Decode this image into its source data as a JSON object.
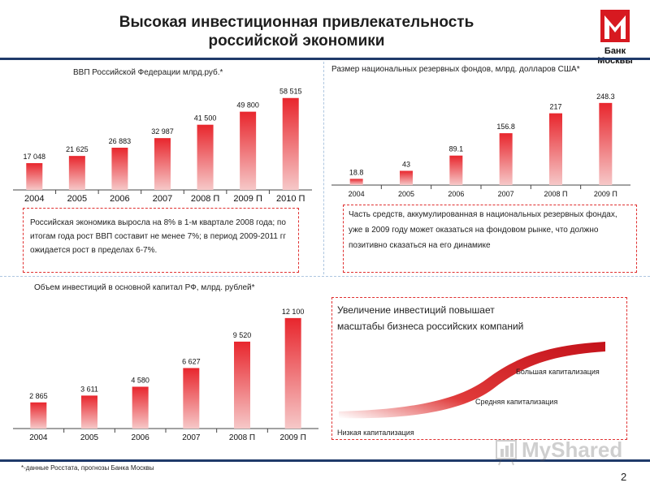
{
  "header": {
    "title_line1": "Высокая инвестиционная привлекательность",
    "title_line2": "российской экономики",
    "logo_text": "Банк Москвы"
  },
  "colors": {
    "bar": "#e8262d",
    "bar_light": "#f6c8c8",
    "header_rule": "#1f3a6a",
    "box_border": "#e03030"
  },
  "gdp": {
    "title": "ВВП Российской Федерации млрд.руб.*",
    "note": "Российская экономика выросла на 8% в 1-м квартале 2008 года; по итогам года рост ВВП составит не менее 7%; в период 2009-2011  гг ожидается рост в пределах 6-7%."
  },
  "reserves": {
    "title": "Размер национальных резервных фондов, млрд. долларов США*",
    "note": "Часть средств, аккумулированная в национальных резервных фондах, уже в 2009 году может оказаться на фондовом рынке, что должно позитивно сказаться на его динамике"
  },
  "investment": {
    "title": "Объем инвестиций  в основной капитал РФ, млрд.  рублей*"
  },
  "growth": {
    "title_line1": "Увеличение инвестиций повышает",
    "title_line2": "масштабы бизнеса российских компаний",
    "large": "Большая капитализация",
    "medium": "Средняя капитализация",
    "small": "Низкая капитализация"
  },
  "footer": {
    "footnote": "*-данные Росстата, прогнозы Банка Москвы",
    "page_number": "2",
    "watermark": "MyShared"
  },
  "chart_data": [
    {
      "type": "bar",
      "id": "gdp",
      "categories": [
        "2004",
        "2005",
        "2006",
        "2007",
        "2008 П",
        "2009 П",
        "2010 П"
      ],
      "values": [
        17048,
        21625,
        26883,
        32987,
        41500,
        49800,
        58515
      ],
      "labels": [
        "17 048",
        "21 625",
        "26 883",
        "32 987",
        "41 500",
        "49 800",
        "58 515"
      ],
      "ylim": [
        0,
        62000
      ]
    },
    {
      "type": "bar",
      "id": "reserves",
      "categories": [
        "2004",
        "2005",
        "2006",
        "2007",
        "2008 П",
        "2009 П"
      ],
      "values": [
        18.8,
        43,
        89.1,
        156.8,
        217,
        248.3
      ],
      "labels": [
        "18.8",
        "43",
        "89.1",
        "156.8",
        "217",
        "248.3"
      ],
      "ylim": [
        0,
        270
      ]
    },
    {
      "type": "bar",
      "id": "investment",
      "categories": [
        "2004",
        "2005",
        "2006",
        "2007",
        "2008 П",
        "2009 П"
      ],
      "values": [
        2865,
        3611,
        4580,
        6627,
        9520,
        12100
      ],
      "labels": [
        "2 865",
        "3 611",
        "4 580",
        "6 627",
        "9 520",
        "12 100"
      ],
      "ylim": [
        0,
        12800
      ]
    }
  ]
}
